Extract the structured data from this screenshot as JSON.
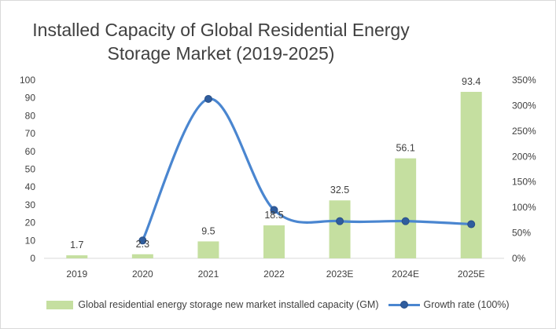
{
  "chart_data": {
    "type": "bar",
    "title": "Installed Capacity of Global Residential Energy Storage Market (2019-2025)",
    "categories": [
      "2019",
      "2020",
      "2021",
      "2022",
      "2023E",
      "2024E",
      "2025E"
    ],
    "series": [
      {
        "name": "Global residential energy storage new market installed capacity (GM)",
        "type": "bar",
        "axis": "left",
        "values": [
          1.7,
          2.3,
          9.5,
          18.5,
          32.5,
          56.1,
          93.4
        ],
        "labels": [
          "1.7",
          "2.3",
          "9.5",
          "18.5",
          "32.5",
          "56.1",
          "93.4"
        ],
        "color": "#c5dfa0"
      },
      {
        "name": "Growth rate (100%)",
        "type": "line",
        "axis": "right",
        "x": [
          "2020",
          "2021",
          "2022",
          "2023E",
          "2024E",
          "2025E"
        ],
        "values": [
          35,
          313,
          95,
          73,
          73,
          67
        ],
        "color": "#4a86d0"
      }
    ],
    "y_left": {
      "min": 0,
      "max": 100,
      "ticks": [
        "0",
        "10",
        "20",
        "30",
        "40",
        "50",
        "60",
        "70",
        "80",
        "90",
        "100"
      ]
    },
    "y_right": {
      "min": 0,
      "max": 350,
      "ticks": [
        "0%",
        "50%",
        "100%",
        "150%",
        "200%",
        "250%",
        "300%",
        "350%"
      ]
    },
    "grid": false,
    "legend_position": "bottom"
  }
}
